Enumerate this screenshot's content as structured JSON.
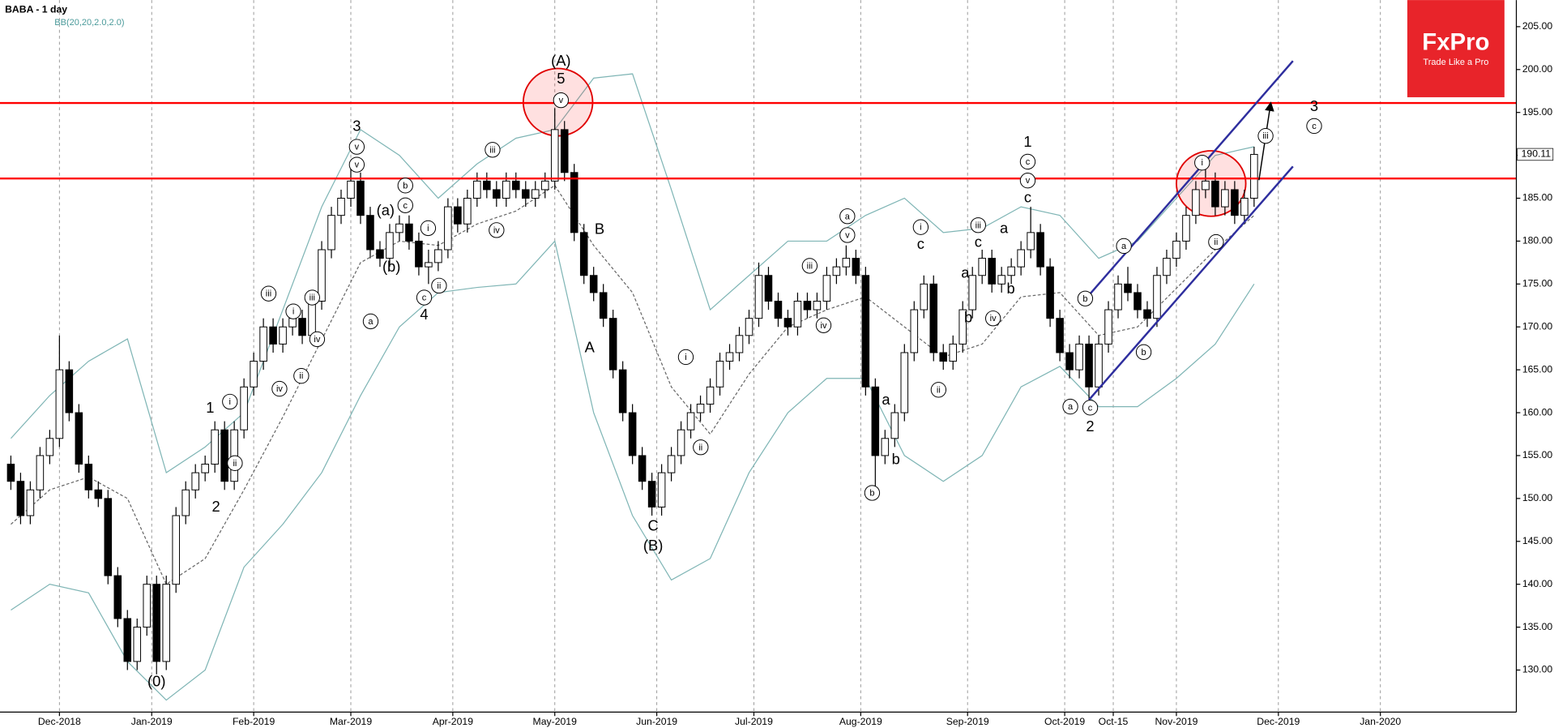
{
  "chart_data": {
    "type": "candlestick",
    "title": "BABA - 1 day",
    "indicator": "BB(20,20,2.0,2.0)",
    "brand": {
      "name": "FxPro",
      "tagline": "Trade Like a Pro"
    },
    "last_price": 190.11,
    "xlim": [
      -12.24,
      300
    ],
    "ylim": [
      125.1,
      208.1
    ],
    "xticks": [
      {
        "value": 0,
        "label": "Dec-2018"
      },
      {
        "value": 19,
        "label": "Jan-2019"
      },
      {
        "value": 40,
        "label": "Feb-2019"
      },
      {
        "value": 60,
        "label": "Mar-2019"
      },
      {
        "value": 81,
        "label": "Apr-2019"
      },
      {
        "value": 102,
        "label": "May-2019"
      },
      {
        "value": 123,
        "label": "Jun-2019"
      },
      {
        "value": 143,
        "label": "Jul-2019"
      },
      {
        "value": 165,
        "label": "Aug-2019"
      },
      {
        "value": 187,
        "label": "Sep-2019"
      },
      {
        "value": 207,
        "label": "Oct-2019"
      },
      {
        "value": 217,
        "label": "Oct-15"
      },
      {
        "value": 230,
        "label": "Nov-2019"
      },
      {
        "value": 251,
        "label": "Dec-2019"
      },
      {
        "value": 272,
        "label": "Jan-2020"
      }
    ],
    "yticks": [
      {
        "value": 130,
        "label": "130.00"
      },
      {
        "value": 135,
        "label": "135.00"
      },
      {
        "value": 140,
        "label": "140.00"
      },
      {
        "value": 145,
        "label": "145.00"
      },
      {
        "value": 150,
        "label": "150.00"
      },
      {
        "value": 155,
        "label": "155.00"
      },
      {
        "value": 160,
        "label": "160.00"
      },
      {
        "value": 165,
        "label": "165.00"
      },
      {
        "value": 170,
        "label": "170.00"
      },
      {
        "value": 175,
        "label": "175.00"
      },
      {
        "value": 180,
        "label": "180.00"
      },
      {
        "value": 185,
        "label": "185.00"
      },
      {
        "value": 190,
        "label": "190.00"
      },
      {
        "value": 195,
        "label": "195.00"
      },
      {
        "value": 200,
        "label": "200.00"
      },
      {
        "value": 205,
        "label": "205.00"
      }
    ],
    "grid": true,
    "up_color": "#ffffff",
    "down_color": "#000000",
    "x": [
      -10,
      -8,
      -6,
      -4,
      -2,
      0,
      2,
      4,
      6,
      8,
      10,
      12,
      14,
      16,
      18,
      20,
      22,
      24,
      26,
      28,
      30,
      32,
      34,
      36,
      38,
      40,
      42,
      44,
      46,
      48,
      50,
      52,
      54,
      56,
      58,
      60,
      62,
      64,
      66,
      68,
      70,
      72,
      74,
      76,
      78,
      80,
      82,
      84,
      86,
      88,
      90,
      92,
      94,
      96,
      98,
      100,
      102,
      104,
      106,
      108,
      110,
      112,
      114,
      116,
      118,
      120,
      122,
      124,
      126,
      128,
      130,
      132,
      134,
      136,
      138,
      140,
      142,
      144,
      146,
      148,
      150,
      152,
      154,
      156,
      158,
      160,
      162,
      164,
      166,
      168,
      170,
      172,
      174,
      176,
      178,
      180,
      182,
      184,
      186,
      188,
      190,
      192,
      194,
      196,
      198,
      200,
      202,
      204,
      206,
      208,
      210,
      212,
      214,
      216,
      218,
      220,
      222,
      224,
      226,
      228,
      230,
      232,
      234,
      236,
      238,
      240,
      242,
      244,
      246
    ],
    "candles": [
      [
        154,
        155,
        151,
        152
      ],
      [
        152,
        153,
        147,
        148
      ],
      [
        148,
        152,
        147,
        151
      ],
      [
        151,
        156,
        150,
        155
      ],
      [
        155,
        158,
        154,
        157
      ],
      [
        157,
        169,
        156,
        165
      ],
      [
        165,
        166,
        159,
        160
      ],
      [
        160,
        161,
        153,
        154
      ],
      [
        154,
        155,
        150,
        151
      ],
      [
        151,
        152,
        149,
        150
      ],
      [
        150,
        151,
        140,
        141
      ],
      [
        141,
        142,
        135,
        136
      ],
      [
        136,
        137,
        130,
        131
      ],
      [
        131,
        136,
        130,
        135
      ],
      [
        135,
        141,
        134,
        140
      ],
      [
        140,
        141,
        129.5,
        131
      ],
      [
        131,
        141,
        130,
        140
      ],
      [
        140,
        149,
        139,
        148
      ],
      [
        148,
        152,
        147,
        151
      ],
      [
        151,
        154,
        150,
        153
      ],
      [
        153,
        155,
        152,
        154
      ],
      [
        154,
        159,
        153,
        158
      ],
      [
        158,
        159,
        151,
        152
      ],
      [
        152,
        159,
        151,
        158
      ],
      [
        158,
        164,
        157,
        163
      ],
      [
        163,
        167,
        162,
        166
      ],
      [
        166,
        171,
        165,
        170
      ],
      [
        170,
        171,
        167,
        168
      ],
      [
        168,
        171,
        167,
        170
      ],
      [
        170,
        172,
        169,
        171
      ],
      [
        171,
        172,
        168,
        169
      ],
      [
        169,
        174,
        168,
        173
      ],
      [
        173,
        180,
        172,
        179
      ],
      [
        179,
        184,
        178,
        183
      ],
      [
        183,
        186,
        182,
        185
      ],
      [
        185,
        188.5,
        184,
        187
      ],
      [
        187,
        188,
        182,
        183
      ],
      [
        183,
        184,
        178,
        179
      ],
      [
        179,
        180,
        177,
        178
      ],
      [
        178,
        182,
        177,
        181
      ],
      [
        181,
        183,
        180,
        182
      ],
      [
        182,
        183,
        179,
        180
      ],
      [
        180,
        181,
        176,
        177
      ],
      [
        177,
        179,
        175,
        177.5
      ],
      [
        177.5,
        180,
        176.5,
        179
      ],
      [
        179,
        185,
        178,
        184
      ],
      [
        184,
        185,
        181,
        182
      ],
      [
        182,
        186,
        181,
        185
      ],
      [
        185,
        188,
        184,
        187
      ],
      [
        187,
        188,
        185,
        186
      ],
      [
        186,
        187,
        184,
        185
      ],
      [
        185,
        188,
        184,
        187
      ],
      [
        187,
        188,
        185,
        186
      ],
      [
        186,
        187,
        184,
        185
      ],
      [
        185,
        187,
        184,
        186
      ],
      [
        186,
        188,
        185,
        187
      ],
      [
        187,
        195.5,
        186,
        193
      ],
      [
        193,
        194,
        187,
        188
      ],
      [
        188,
        189,
        180,
        181
      ],
      [
        181,
        182,
        175,
        176
      ],
      [
        176,
        177,
        173,
        174
      ],
      [
        174,
        175,
        170,
        171
      ],
      [
        171,
        172,
        164,
        165
      ],
      [
        165,
        166,
        159,
        160
      ],
      [
        160,
        161,
        154,
        155
      ],
      [
        155,
        156,
        151,
        152
      ],
      [
        152,
        153,
        148,
        149
      ],
      [
        149,
        154,
        148,
        153
      ],
      [
        153,
        156,
        152,
        155
      ],
      [
        155,
        159,
        154,
        158
      ],
      [
        158,
        161,
        157,
        160
      ],
      [
        160,
        162,
        159,
        161
      ],
      [
        161,
        164,
        160,
        163
      ],
      [
        163,
        167,
        162,
        166
      ],
      [
        166,
        168,
        165,
        167
      ],
      [
        167,
        170,
        166,
        169
      ],
      [
        169,
        172,
        168,
        171
      ],
      [
        171,
        177.5,
        170,
        176
      ],
      [
        176,
        177,
        172,
        173
      ],
      [
        173,
        174,
        170,
        171
      ],
      [
        171,
        172,
        169,
        170
      ],
      [
        170,
        174,
        169,
        173
      ],
      [
        173,
        174,
        171,
        172
      ],
      [
        172,
        174,
        171,
        173
      ],
      [
        173,
        177,
        172,
        176
      ],
      [
        176,
        178,
        175,
        177
      ],
      [
        177,
        179.5,
        176,
        178
      ],
      [
        178,
        179,
        175,
        176
      ],
      [
        176,
        177,
        162,
        163
      ],
      [
        163,
        164,
        151,
        155
      ],
      [
        155,
        158,
        154,
        157
      ],
      [
        157,
        161,
        156,
        160
      ],
      [
        160,
        168,
        159,
        167
      ],
      [
        167,
        173,
        166,
        172
      ],
      [
        172,
        176,
        171,
        175
      ],
      [
        175,
        176,
        166,
        167
      ],
      [
        167,
        168,
        165,
        166
      ],
      [
        166,
        169,
        165,
        168
      ],
      [
        168,
        173,
        167,
        172
      ],
      [
        172,
        177,
        171,
        176
      ],
      [
        176,
        179,
        175,
        178
      ],
      [
        178,
        179,
        174,
        175
      ],
      [
        175,
        177,
        174,
        176
      ],
      [
        176,
        178,
        175,
        177
      ],
      [
        177,
        180,
        176,
        179
      ],
      [
        179,
        184,
        178,
        181
      ],
      [
        181,
        182,
        176,
        177
      ],
      [
        177,
        178,
        170,
        171
      ],
      [
        171,
        172,
        166,
        167
      ],
      [
        167,
        168,
        164,
        165
      ],
      [
        165,
        169,
        164,
        168
      ],
      [
        168,
        169,
        161.5,
        163
      ],
      [
        163,
        169,
        162,
        168
      ],
      [
        168,
        173,
        167,
        172
      ],
      [
        172,
        176,
        171,
        175
      ],
      [
        175,
        177,
        173,
        174
      ],
      [
        174,
        175,
        171,
        172
      ],
      [
        172,
        173,
        170,
        171
      ],
      [
        171,
        177,
        170,
        176
      ],
      [
        176,
        179,
        175,
        178
      ],
      [
        178,
        181,
        177,
        180
      ],
      [
        180,
        184,
        179,
        183
      ],
      [
        183,
        187,
        182,
        186
      ],
      [
        186,
        189,
        185,
        187
      ],
      [
        187,
        188,
        183,
        184
      ],
      [
        184,
        187,
        183,
        186
      ],
      [
        186,
        187,
        182,
        183
      ],
      [
        183,
        186,
        182,
        185
      ],
      [
        185,
        191,
        184,
        190.11
      ]
    ],
    "bands": {
      "band_color": "#7fb5b5",
      "middle_color": "#666666",
      "x": [
        -10,
        -2,
        6,
        14,
        22,
        30,
        38,
        46,
        54,
        62,
        70,
        78,
        86,
        94,
        102,
        110,
        118,
        126,
        134,
        142,
        150,
        158,
        166,
        174,
        182,
        190,
        198,
        206,
        214,
        222,
        230,
        238,
        246
      ],
      "upper": [
        157,
        162,
        166,
        168.6,
        153,
        156,
        160,
        172,
        184,
        193,
        190,
        185,
        189,
        192,
        193,
        199,
        199.5,
        186,
        172,
        176,
        180,
        180,
        183,
        185,
        181,
        181.5,
        184,
        183,
        178,
        180,
        185,
        190,
        191
      ],
      "middle": [
        147,
        151,
        152.5,
        150,
        140,
        143,
        151,
        159.5,
        168.5,
        177.5,
        180,
        179.5,
        182,
        183.5,
        186.5,
        179.5,
        174,
        163,
        157.5,
        164.5,
        170,
        172,
        173.5,
        170,
        166.5,
        168,
        173.5,
        174,
        169,
        170,
        174.5,
        179,
        183
      ],
      "lower": [
        137,
        140,
        139,
        131,
        126.5,
        130,
        142,
        147,
        153,
        162,
        170,
        174,
        174.6,
        175,
        180,
        160,
        148,
        140.5,
        143,
        153,
        160,
        164,
        164,
        155,
        152,
        155,
        163,
        165.4,
        160.7,
        160.7,
        164,
        168,
        175
      ]
    },
    "hline_color": "#ff0000",
    "hlines": [
      196.1,
      187.3
    ],
    "channel_color": "#2e2e9e",
    "channel": [
      {
        "x": [
          212,
          254
        ],
        "y": [
          173.7,
          201
        ]
      },
      {
        "x": [
          212,
          254
        ],
        "y": [
          161.5,
          188.7
        ]
      }
    ],
    "arrow": {
      "x": [
        247,
        249.4
      ],
      "y": [
        187.1,
        196
      ]
    },
    "annotations": [
      {
        "text": "(0)",
        "circled": false
      },
      {
        "text": "1",
        "circled": false
      },
      {
        "text": "i",
        "circled": true
      },
      {
        "text": "ii",
        "circled": true
      },
      {
        "text": "2",
        "circled": false
      },
      {
        "text": "iii",
        "circled": true
      },
      {
        "text": "i",
        "circled": true
      },
      {
        "text": "ii",
        "circled": true
      },
      {
        "text": "iii",
        "circled": true
      },
      {
        "text": "iv",
        "circled": true
      },
      {
        "text": "iv",
        "circled": true
      },
      {
        "text": "3",
        "circled": false
      },
      {
        "text": "v",
        "circled": true
      },
      {
        "text": "v",
        "circled": true
      },
      {
        "text": "b",
        "circled": true
      },
      {
        "text": "(a)",
        "circled": false
      },
      {
        "text": "c",
        "circled": true
      },
      {
        "text": "(b)",
        "circled": false
      },
      {
        "text": "a",
        "circled": true
      },
      {
        "text": "i",
        "circled": true
      },
      {
        "text": "ii",
        "circled": true
      },
      {
        "text": "c",
        "circled": true
      },
      {
        "text": "4",
        "circled": false
      },
      {
        "text": "iii",
        "circled": true
      },
      {
        "text": "iv",
        "circled": true
      },
      {
        "text": "(A)",
        "circled": false
      },
      {
        "text": "5",
        "circled": false
      },
      {
        "text": "v",
        "circled": true
      },
      {
        "text": "B",
        "circled": false
      },
      {
        "text": "A",
        "circled": false
      },
      {
        "text": "C",
        "circled": false
      },
      {
        "text": "(B)",
        "circled": false
      },
      {
        "text": "i",
        "circled": true
      },
      {
        "text": "ii",
        "circled": true
      },
      {
        "text": "iii",
        "circled": true
      },
      {
        "text": "a",
        "circled": true
      },
      {
        "text": "v",
        "circled": true
      },
      {
        "text": "iv",
        "circled": true
      },
      {
        "text": "a",
        "circled": false
      },
      {
        "text": "b",
        "circled": false
      },
      {
        "text": "b",
        "circled": true
      },
      {
        "text": "i",
        "circled": true
      },
      {
        "text": "c",
        "circled": false
      },
      {
        "text": "ii",
        "circled": true
      },
      {
        "text": "iii",
        "circled": true
      },
      {
        "text": "c",
        "circled": false
      },
      {
        "text": "a",
        "circled": false
      },
      {
        "text": "b",
        "circled": false
      },
      {
        "text": "iv",
        "circled": true
      },
      {
        "text": "a",
        "circled": false
      },
      {
        "text": "b",
        "circled": false
      },
      {
        "text": "1",
        "circled": false
      },
      {
        "text": "c",
        "circled": true
      },
      {
        "text": "v",
        "circled": true
      },
      {
        "text": "c",
        "circled": false
      },
      {
        "text": "a",
        "circled": true
      },
      {
        "text": "c",
        "circled": true
      },
      {
        "text": "2",
        "circled": false
      },
      {
        "text": "b",
        "circled": true
      },
      {
        "text": "a",
        "circled": true
      },
      {
        "text": "b",
        "circled": true
      },
      {
        "text": "i",
        "circled": true
      },
      {
        "text": "ii",
        "circled": true
      },
      {
        "text": "iii",
        "circled": true
      },
      {
        "text": "3",
        "circled": false
      },
      {
        "text": "c",
        "circled": true
      }
    ]
  }
}
